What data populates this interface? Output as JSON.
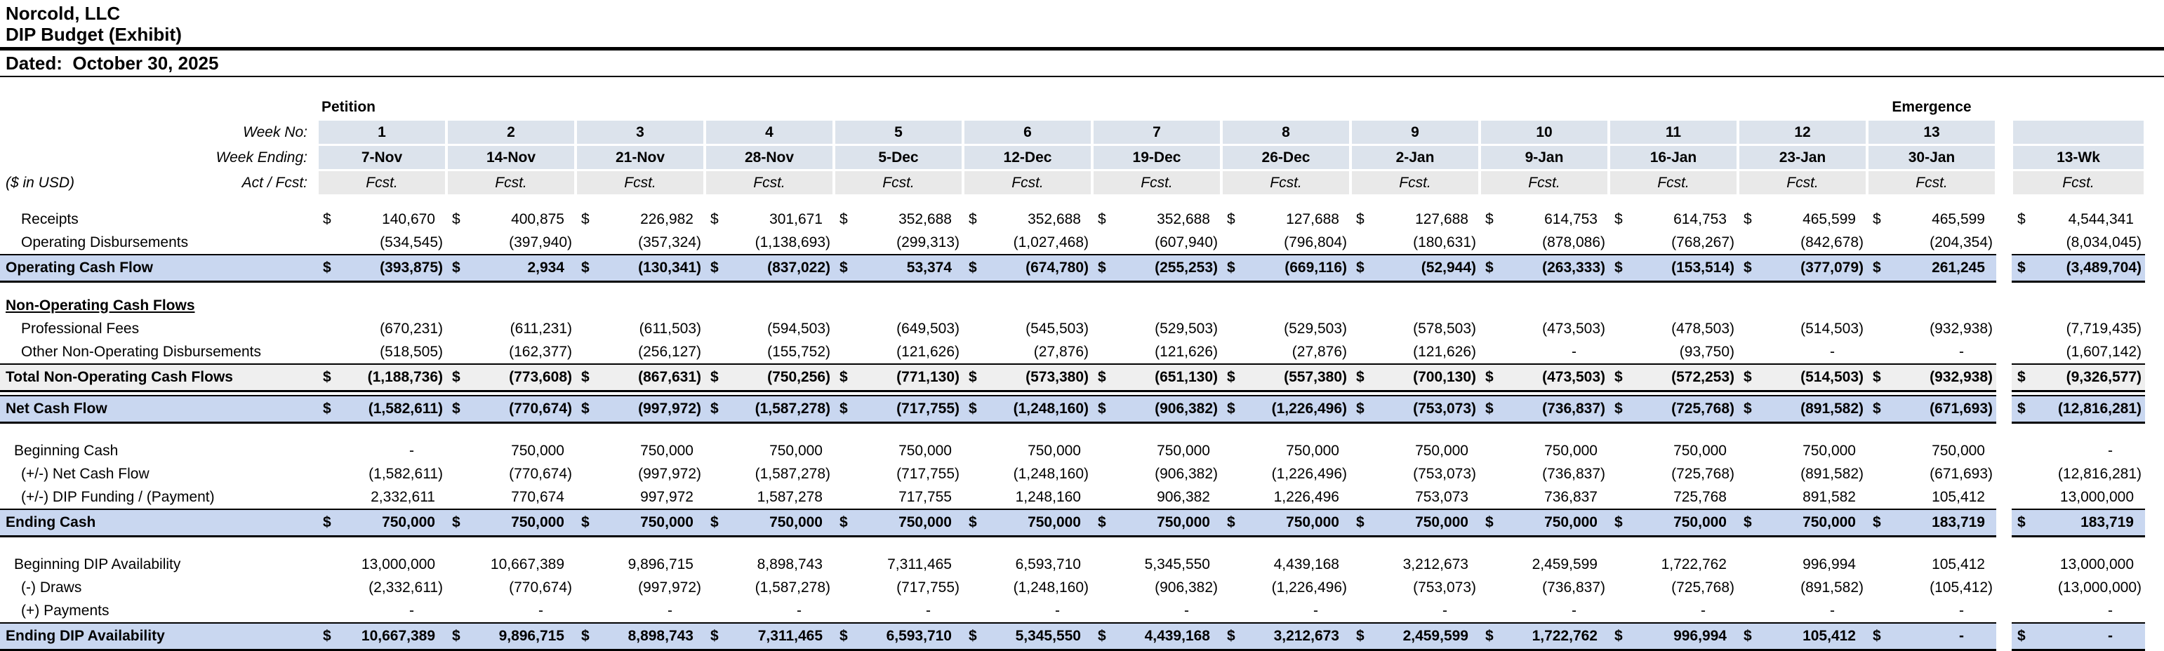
{
  "currency_symbol": "$",
  "title": {
    "company": "Norcold, LLC",
    "report": "DIP Budget (Exhibit)",
    "dated": "Dated:  October 30, 2025"
  },
  "header": {
    "petition_label": "Petition",
    "emergence_label": "Emergence",
    "week_no_label": "Week No:",
    "week_ending_label": "Week Ending:",
    "act_fcst_label": "Act / Fcst:",
    "usd_label": "($ in USD)",
    "total_label": "13-Wk",
    "week_nos": [
      "1",
      "2",
      "3",
      "4",
      "5",
      "6",
      "7",
      "8",
      "9",
      "10",
      "11",
      "12",
      "13"
    ],
    "week_endings": [
      "7-Nov",
      "14-Nov",
      "21-Nov",
      "28-Nov",
      "5-Dec",
      "12-Dec",
      "19-Dec",
      "26-Dec",
      "2-Jan",
      "9-Jan",
      "16-Jan",
      "23-Jan",
      "30-Jan"
    ],
    "act_fcst": [
      "Fcst.",
      "Fcst.",
      "Fcst.",
      "Fcst.",
      "Fcst.",
      "Fcst.",
      "Fcst.",
      "Fcst.",
      "Fcst.",
      "Fcst.",
      "Fcst.",
      "Fcst.",
      "Fcst."
    ],
    "total_act_fcst": "Fcst."
  },
  "rows": [
    {
      "label": "Receipts",
      "style": "item",
      "indent": 2,
      "dollar": true,
      "values": [
        "140,670",
        "400,875",
        "226,982",
        "301,671",
        "352,688",
        "352,688",
        "352,688",
        "127,688",
        "127,688",
        "614,753",
        "614,753",
        "465,599",
        "465,599"
      ],
      "total": "4,544,341"
    },
    {
      "label": "Operating Disbursements",
      "style": "item",
      "indent": 2,
      "dollar": false,
      "values": [
        "(534,545)",
        "(397,940)",
        "(357,324)",
        "(1,138,693)",
        "(299,313)",
        "(1,027,468)",
        "(607,940)",
        "(796,804)",
        "(180,631)",
        "(878,086)",
        "(768,267)",
        "(842,678)",
        "(204,354)"
      ],
      "total": "(8,034,045)"
    },
    {
      "label": "Operating Cash Flow",
      "style": "total_blue",
      "indent": 0,
      "dollar": true,
      "values": [
        "(393,875)",
        "2,934",
        "(130,341)",
        "(837,022)",
        "53,374",
        "(674,780)",
        "(255,253)",
        "(669,116)",
        "(52,944)",
        "(263,333)",
        "(153,514)",
        "(377,079)",
        "261,245"
      ],
      "total": "(3,489,704)"
    },
    {
      "label": "Non-Operating Cash Flows",
      "style": "section",
      "indent": 0,
      "dollar": false,
      "values": [
        "",
        "",
        "",
        "",
        "",
        "",
        "",
        "",
        "",
        "",
        "",
        "",
        ""
      ],
      "total": ""
    },
    {
      "label": "Professional Fees",
      "style": "item",
      "indent": 2,
      "dollar": false,
      "values": [
        "(670,231)",
        "(611,231)",
        "(611,503)",
        "(594,503)",
        "(649,503)",
        "(545,503)",
        "(529,503)",
        "(529,503)",
        "(578,503)",
        "(473,503)",
        "(478,503)",
        "(514,503)",
        "(932,938)"
      ],
      "total": "(7,719,435)"
    },
    {
      "label": "Other Non-Operating Disbursements",
      "style": "item",
      "indent": 2,
      "dollar": false,
      "values": [
        "(518,505)",
        "(162,377)",
        "(256,127)",
        "(155,752)",
        "(121,626)",
        "(27,876)",
        "(121,626)",
        "(27,876)",
        "(121,626)",
        "-",
        "(93,750)",
        "-",
        "-"
      ],
      "total": "(1,607,142)"
    },
    {
      "label": "Total Non-Operating Cash Flows",
      "style": "total_gray",
      "indent": 0,
      "dollar": true,
      "values": [
        "(1,188,736)",
        "(773,608)",
        "(867,631)",
        "(750,256)",
        "(771,130)",
        "(573,380)",
        "(651,130)",
        "(557,380)",
        "(700,130)",
        "(473,503)",
        "(572,253)",
        "(514,503)",
        "(932,938)"
      ],
      "total": "(9,326,577)"
    },
    {
      "label": "Net Cash Flow",
      "style": "total_blue",
      "indent": 0,
      "dollar": true,
      "values": [
        "(1,582,611)",
        "(770,674)",
        "(997,972)",
        "(1,587,278)",
        "(717,755)",
        "(1,248,160)",
        "(906,382)",
        "(1,226,496)",
        "(753,073)",
        "(736,837)",
        "(725,768)",
        "(891,582)",
        "(671,693)"
      ],
      "total": "(12,816,281)"
    },
    {
      "label": "Beginning Cash",
      "style": "item",
      "indent": 1,
      "dollar": false,
      "values": [
        "-",
        "750,000",
        "750,000",
        "750,000",
        "750,000",
        "750,000",
        "750,000",
        "750,000",
        "750,000",
        "750,000",
        "750,000",
        "750,000",
        "750,000"
      ],
      "total": "-"
    },
    {
      "label": "(+/-) Net Cash Flow",
      "style": "item",
      "indent": 2,
      "dollar": false,
      "values": [
        "(1,582,611)",
        "(770,674)",
        "(997,972)",
        "(1,587,278)",
        "(717,755)",
        "(1,248,160)",
        "(906,382)",
        "(1,226,496)",
        "(753,073)",
        "(736,837)",
        "(725,768)",
        "(891,582)",
        "(671,693)"
      ],
      "total": "(12,816,281)"
    },
    {
      "label": "(+/-) DIP Funding / (Payment)",
      "style": "item",
      "indent": 2,
      "dollar": false,
      "values": [
        "2,332,611",
        "770,674",
        "997,972",
        "1,587,278",
        "717,755",
        "1,248,160",
        "906,382",
        "1,226,496",
        "753,073",
        "736,837",
        "725,768",
        "891,582",
        "105,412"
      ],
      "total": "13,000,000"
    },
    {
      "label": "Ending Cash",
      "style": "total_blue",
      "indent": 0,
      "dollar": true,
      "values": [
        "750,000",
        "750,000",
        "750,000",
        "750,000",
        "750,000",
        "750,000",
        "750,000",
        "750,000",
        "750,000",
        "750,000",
        "750,000",
        "750,000",
        "183,719"
      ],
      "total": "183,719"
    },
    {
      "label": "Beginning DIP Availability",
      "style": "item",
      "indent": 1,
      "dollar": false,
      "values": [
        "13,000,000",
        "10,667,389",
        "9,896,715",
        "8,898,743",
        "7,311,465",
        "6,593,710",
        "5,345,550",
        "4,439,168",
        "3,212,673",
        "2,459,599",
        "1,722,762",
        "996,994",
        "105,412"
      ],
      "total": "13,000,000"
    },
    {
      "label": "(-) Draws",
      "style": "item",
      "indent": 2,
      "dollar": false,
      "values": [
        "(2,332,611)",
        "(770,674)",
        "(997,972)",
        "(1,587,278)",
        "(717,755)",
        "(1,248,160)",
        "(906,382)",
        "(1,226,496)",
        "(753,073)",
        "(736,837)",
        "(725,768)",
        "(891,582)",
        "(105,412)"
      ],
      "total": "(13,000,000)"
    },
    {
      "label": "(+) Payments",
      "style": "item",
      "indent": 2,
      "dollar": false,
      "values": [
        "-",
        "-",
        "-",
        "-",
        "-",
        "-",
        "-",
        "-",
        "-",
        "-",
        "-",
        "-",
        "-"
      ],
      "total": "-"
    },
    {
      "label": "Ending DIP Availability",
      "style": "total_blue",
      "indent": 0,
      "dollar": true,
      "values": [
        "10,667,389",
        "9,896,715",
        "8,898,743",
        "7,311,465",
        "6,593,710",
        "5,345,550",
        "4,439,168",
        "3,212,673",
        "2,459,599",
        "1,722,762",
        "996,994",
        "105,412",
        "-"
      ],
      "total": "-"
    }
  ]
}
